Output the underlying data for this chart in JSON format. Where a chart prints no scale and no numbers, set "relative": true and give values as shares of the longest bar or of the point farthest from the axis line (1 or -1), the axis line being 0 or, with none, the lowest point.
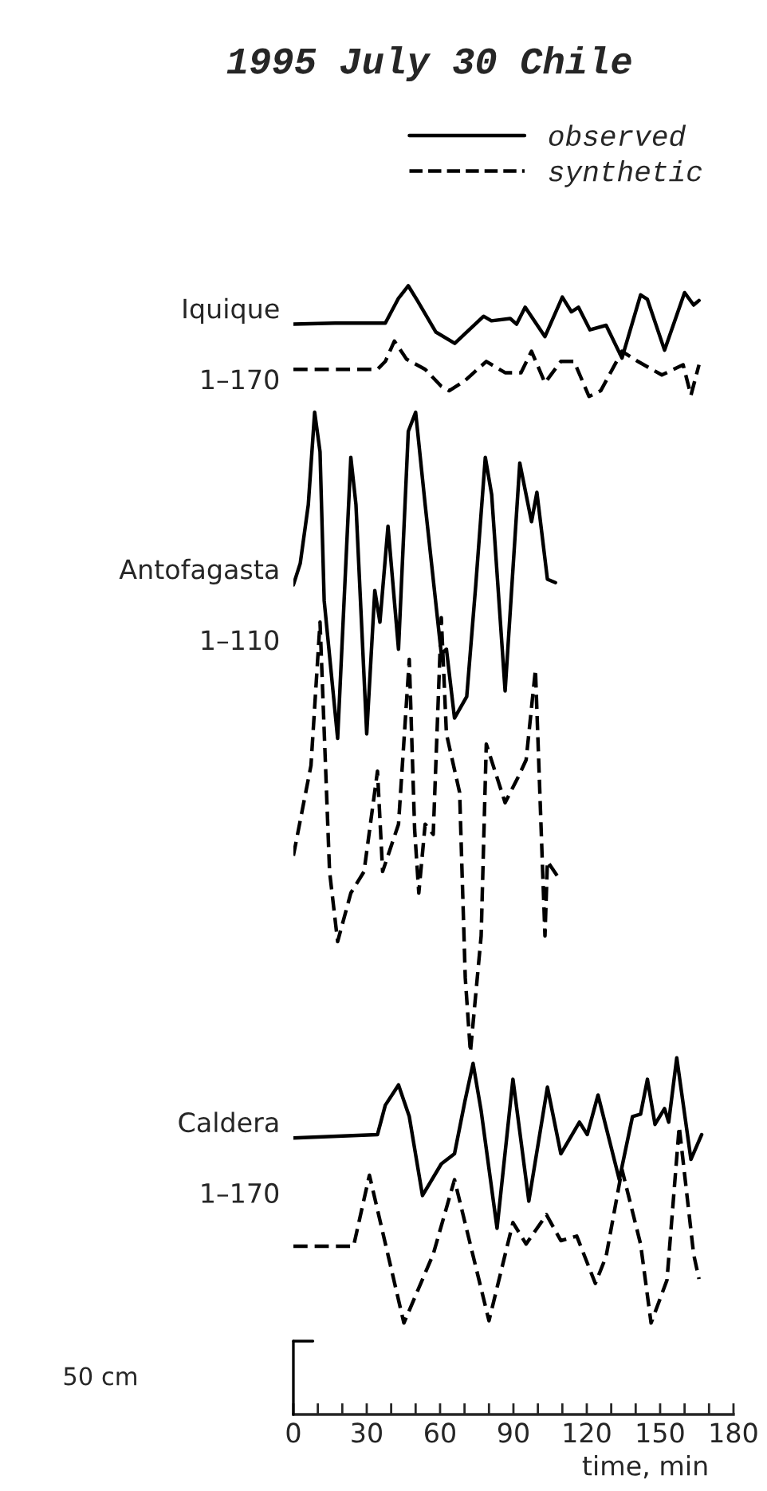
{
  "chart_data": {
    "type": "line",
    "title": "1995 July 30 Chile",
    "xlabel": "time, min",
    "relative": true,
    "legend": "top",
    "grid": false,
    "tick_labels": "x",
    "marker": "none",
    "xlim": [
      0,
      180
    ],
    "xticks": [
      0,
      {
        "value": 10,
        "label": null
      },
      {
        "value": 20,
        "label": null
      },
      30,
      {
        "value": 40,
        "label": null
      },
      {
        "value": 50,
        "label": null
      },
      60,
      {
        "value": 70,
        "label": null
      },
      {
        "value": 80,
        "label": null
      },
      90,
      {
        "value": 100,
        "label": null
      },
      {
        "value": 110,
        "label": null
      },
      120,
      {
        "value": 130,
        "label": null
      },
      {
        "value": 140,
        "label": null
      },
      150,
      {
        "value": 160,
        "label": null
      },
      {
        "value": 170,
        "label": null
      },
      180
    ],
    "annotations": [
      "Iquique",
      "1–170",
      "Antofagasta",
      "1–110",
      "Caldera",
      "1–170",
      "50 cm"
    ],
    "series": [
      {
        "name": "observed",
        "color": "#000000",
        "line_style": "solid",
        "x": [
          0,
          17,
          37.6,
          43,
          47,
          50.7,
          58.3,
          66,
          77.8,
          81,
          88.7,
          91.3,
          94.8,
          102.9,
          110,
          113.7,
          116.6,
          121.3,
          127.9,
          134.4,
          142,
          144.8,
          151.8,
          160,
          163.7,
          165.9
        ],
        "values": [
          0.966,
          0.967,
          0.967,
          0.989,
          1.0,
          0.987,
          0.959,
          0.949,
          0.973,
          0.969,
          0.971,
          0.966,
          0.981,
          0.955,
          0.99,
          0.977,
          0.981,
          0.961,
          0.965,
          0.936,
          0.992,
          0.988,
          0.943,
          0.994,
          0.983,
          0.987
        ]
      },
      {
        "name": "synthetic",
        "color": "#000000",
        "line_style": "dashed",
        "x": [
          0,
          34.4,
          37.6,
          41.3,
          46.3,
          53.9,
          60.5,
          63.7,
          70.2,
          78.9,
          86.6,
          93.1,
          97.4,
          102.9,
          109.4,
          114.8,
          120.9,
          125.7,
          132.2,
          134.4,
          140.9,
          150.7,
          159.4,
          162.6,
          165.9
        ],
        "values": [
          0.926,
          0.926,
          0.933,
          0.951,
          0.935,
          0.926,
          0.911,
          0.907,
          0.916,
          0.933,
          0.923,
          0.923,
          0.942,
          0.914,
          0.933,
          0.933,
          0.902,
          0.907,
          0.933,
          0.942,
          0.933,
          0.921,
          0.93,
          0.903,
          0.93
        ]
      },
      {
        "color": "#000000",
        "line_style": "solid",
        "x": [
          0,
          2.8,
          6.1,
          8.7,
          10.9,
          12.6,
          18.1,
          23.5,
          25.6,
          30,
          33.3,
          35.4,
          38.7,
          43,
          47,
          50,
          53.9,
          60.5,
          62.6,
          65.9,
          70.9,
          74.6,
          78.5,
          81.1,
          86.6,
          92.6,
          97.4,
          99.6,
          103.9,
          107.2
        ],
        "values": [
          0.735,
          0.754,
          0.806,
          0.888,
          0.853,
          0.721,
          0.599,
          0.848,
          0.806,
          0.603,
          0.73,
          0.702,
          0.787,
          0.678,
          0.871,
          0.888,
          0.806,
          0.674,
          0.678,
          0.617,
          0.636,
          0.735,
          0.848,
          0.815,
          0.641,
          0.843,
          0.791,
          0.817,
          0.74,
          0.737
        ]
      },
      {
        "color": "#000000",
        "line_style": "dashed",
        "x": [
          0,
          7.2,
          10.9,
          14.8,
          18.1,
          23.5,
          28.9,
          34.4,
          36.5,
          43,
          47.4,
          49.6,
          51.3,
          53.9,
          57.2,
          60.5,
          62.6,
          68,
          70.3,
          72.4,
          76.8,
          78.9,
          86.6,
          92,
          95.2,
          99,
          102.9,
          103.9,
          108.3
        ],
        "values": [
          0.495,
          0.575,
          0.702,
          0.481,
          0.419,
          0.462,
          0.481,
          0.57,
          0.481,
          0.523,
          0.669,
          0.518,
          0.462,
          0.523,
          0.514,
          0.706,
          0.603,
          0.551,
          0.387,
          0.321,
          0.424,
          0.594,
          0.542,
          0.565,
          0.58,
          0.66,
          0.424,
          0.49,
          0.476
        ]
      },
      {
        "color": "#000000",
        "line_style": "solid",
        "x": [
          0,
          34.4,
          37.6,
          43,
          47.4,
          52.8,
          60.5,
          65.9,
          70.2,
          73.5,
          76.8,
          83.3,
          89.8,
          96.3,
          103.9,
          109.4,
          117,
          120.2,
          124.6,
          133.3,
          138.7,
          142,
          144.8,
          147.9,
          151.8,
          153.5,
          156.8,
          162.6,
          167
        ],
        "values": [
          0.245,
          0.248,
          0.274,
          0.292,
          0.264,
          0.194,
          0.222,
          0.231,
          0.278,
          0.311,
          0.269,
          0.165,
          0.297,
          0.189,
          0.29,
          0.231,
          0.259,
          0.248,
          0.283,
          0.208,
          0.264,
          0.266,
          0.297,
          0.257,
          0.271,
          0.259,
          0.316,
          0.226,
          0.248
        ]
      },
      {
        "color": "#000000",
        "line_style": "dashed",
        "x": [
          0,
          24.6,
          31.1,
          45.2,
          57.2,
          65.9,
          80,
          89.8,
          95.2,
          103.5,
          109.4,
          115.9,
          123.5,
          127.9,
          134.4,
          142,
          146.3,
          152.8,
          157.8,
          163.7,
          165.9
        ],
        "values": [
          0.149,
          0.149,
          0.212,
          0.081,
          0.142,
          0.208,
          0.083,
          0.17,
          0.151,
          0.177,
          0.154,
          0.158,
          0.116,
          0.14,
          0.217,
          0.151,
          0.081,
          0.119,
          0.255,
          0.142,
          0.12
        ]
      }
    ]
  }
}
